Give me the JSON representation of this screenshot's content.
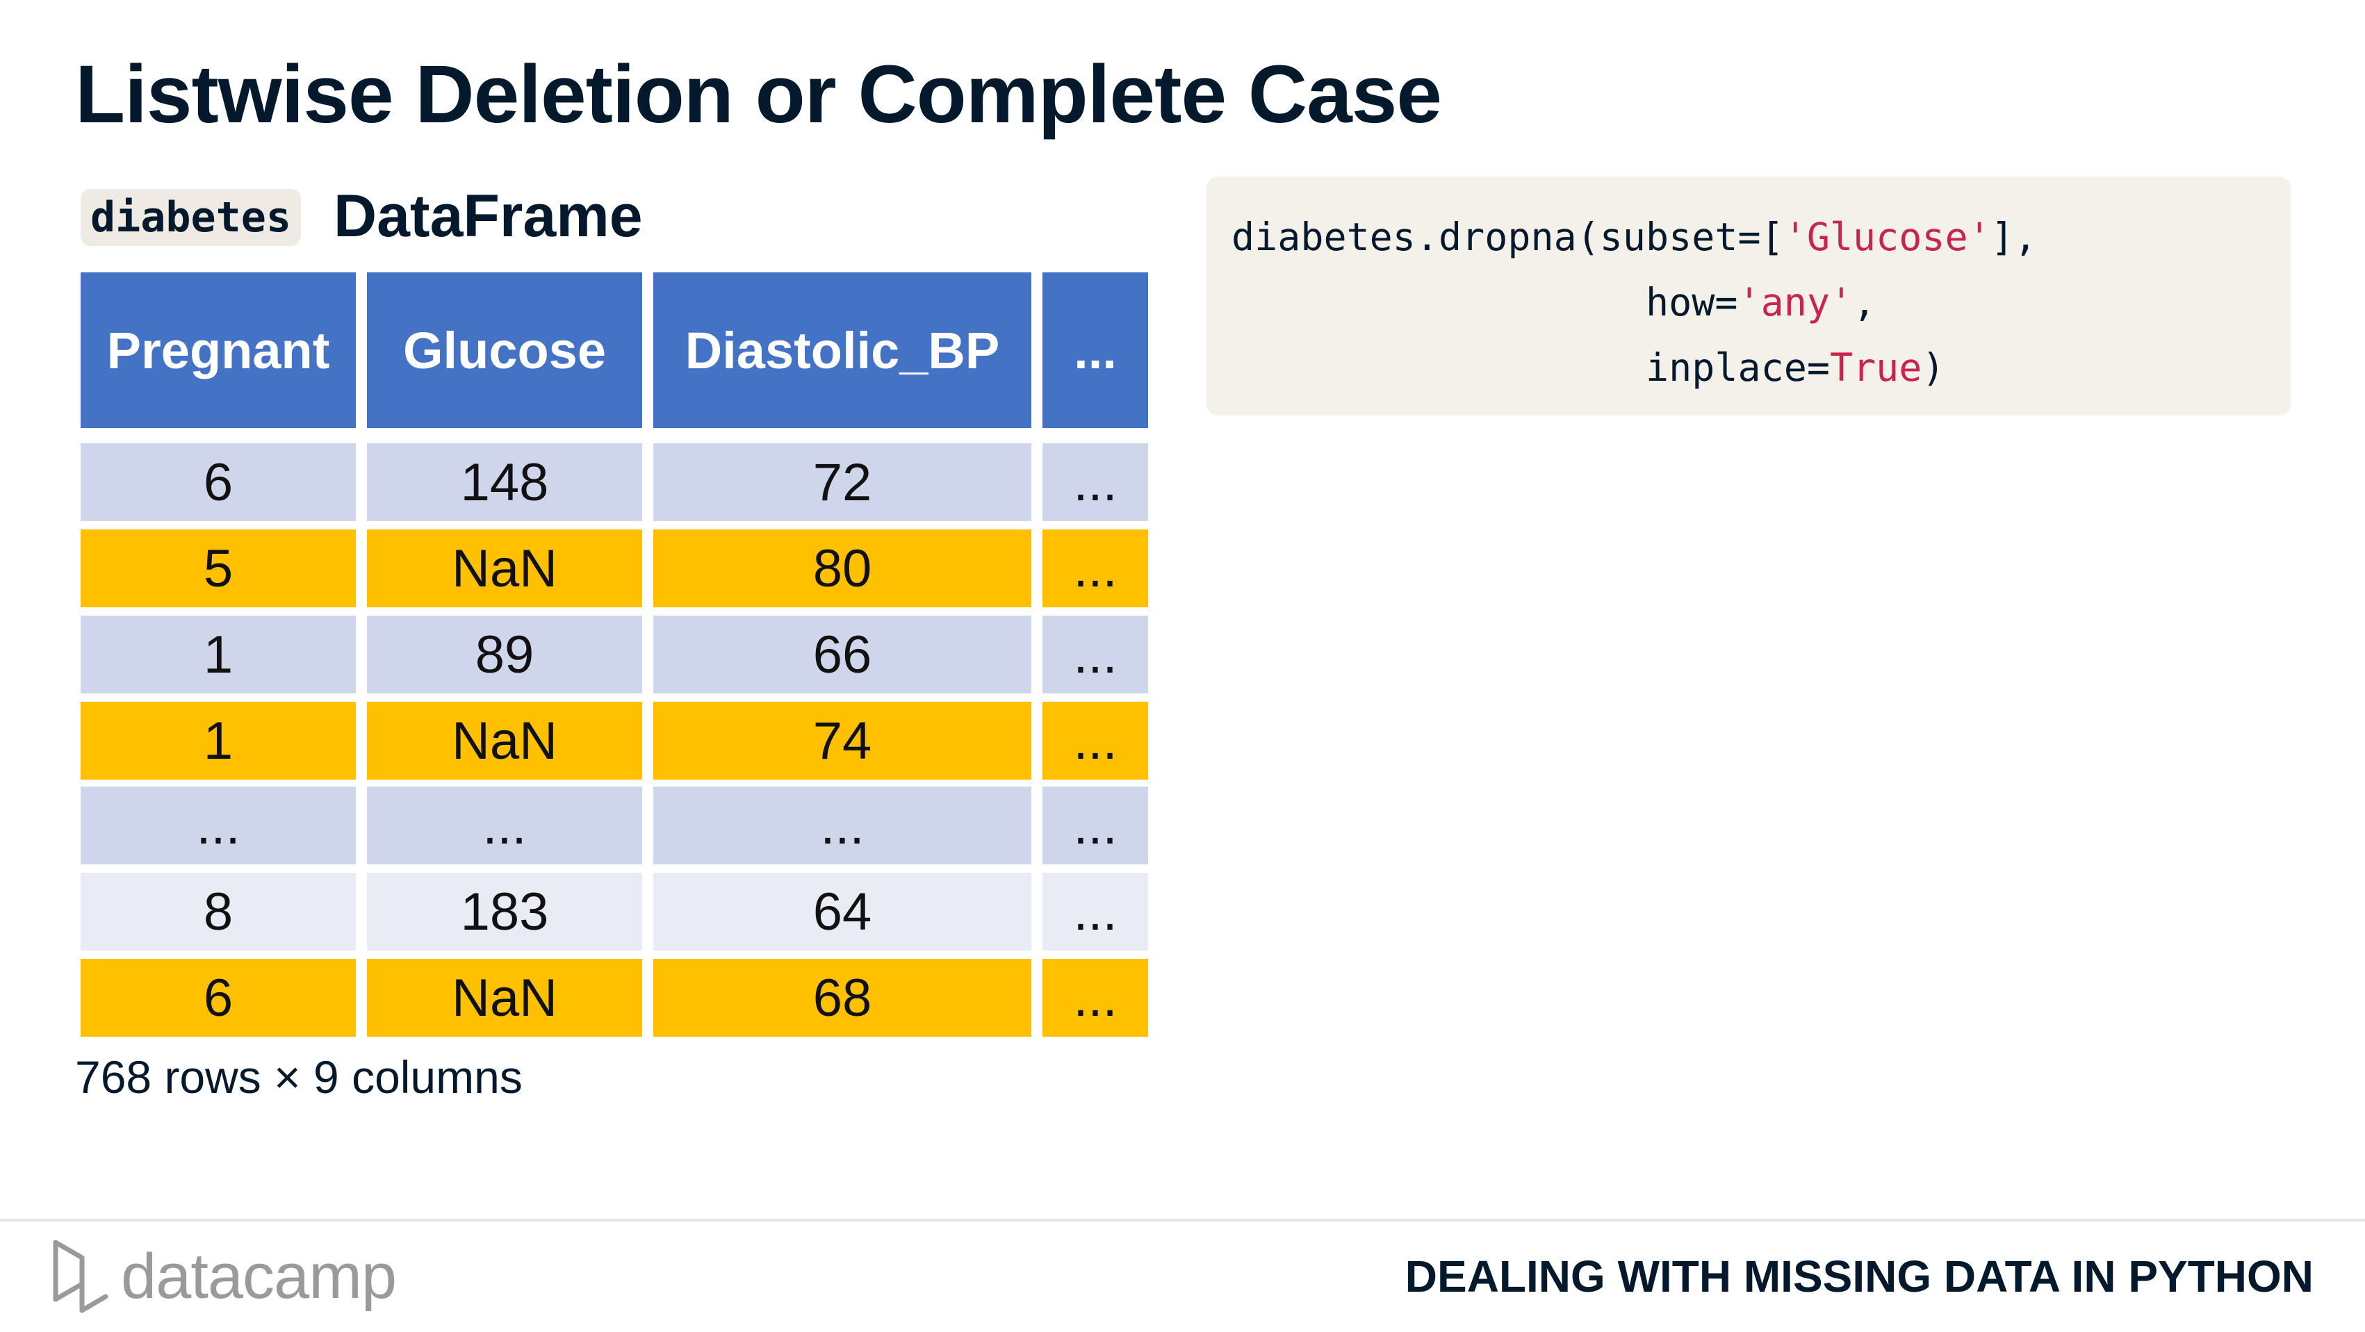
{
  "slide": {
    "title": "Listwise Deletion or Complete Case",
    "df_name": "diabetes",
    "df_label": "DataFrame",
    "caption": "768 rows × 9 columns"
  },
  "table": {
    "headers": [
      "Pregnant",
      "Glucose",
      "Diastolic_BP",
      "..."
    ],
    "rows": [
      {
        "style": "blue",
        "cells": [
          "6",
          "148",
          "72",
          "..."
        ]
      },
      {
        "style": "gold",
        "cells": [
          "5",
          "NaN",
          "80",
          "..."
        ]
      },
      {
        "style": "blue",
        "cells": [
          "1",
          "89",
          "66",
          "..."
        ]
      },
      {
        "style": "gold",
        "cells": [
          "1",
          "NaN",
          "74",
          "..."
        ]
      },
      {
        "style": "blue",
        "cells": [
          "...",
          "...",
          "...",
          "..."
        ]
      },
      {
        "style": "light",
        "cells": [
          "8",
          "183",
          "64",
          "..."
        ]
      },
      {
        "style": "gold",
        "cells": [
          "6",
          "NaN",
          "68",
          "..."
        ]
      }
    ]
  },
  "code": {
    "line1_pre": "diabetes.dropna(subset=[",
    "line1_str": "'Glucose'",
    "line1_post": "],",
    "line2_indent": "                  ",
    "line2_pre": "how=",
    "line2_str": "'any'",
    "line2_post": ",",
    "line3_indent": "                  ",
    "line3_pre": "inplace=",
    "line3_kw": "True",
    "line3_post": ")"
  },
  "footer": {
    "brand": "datacamp",
    "course_title": "DEALING WITH MISSING DATA IN PYTHON"
  },
  "colors": {
    "header_blue": "#4472c4",
    "row_blue": "#cfd5ea",
    "row_gold": "#ffc000",
    "row_light": "#e9ebf5",
    "string_color": "#c7254e"
  }
}
